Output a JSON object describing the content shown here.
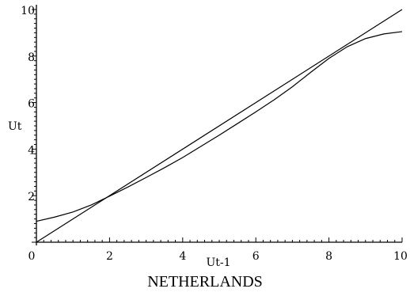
{
  "chart_data": {
    "type": "line",
    "title": "NETHERLANDS",
    "xlabel": "Ut-1",
    "ylabel": "Ut",
    "xlim": [
      0,
      10
    ],
    "ylim": [
      0,
      10
    ],
    "x_ticks": [
      "0",
      "2",
      "4",
      "6",
      "8",
      "10"
    ],
    "y_ticks": [
      "2",
      "4",
      "6",
      "8",
      "10"
    ],
    "grid": false,
    "legend": "none",
    "series": [
      {
        "x": [
          0,
          10
        ],
        "y": [
          0,
          10
        ]
      },
      {
        "x": [
          0,
          0.5,
          1,
          1.5,
          2,
          2.5,
          3,
          3.5,
          4,
          4.5,
          5,
          5.5,
          6,
          6.5,
          7,
          7.5,
          8,
          8.5,
          9,
          9.5,
          10
        ],
        "y": [
          0.9,
          1.08,
          1.3,
          1.6,
          1.98,
          2.37,
          2.78,
          3.2,
          3.64,
          4.12,
          4.6,
          5.1,
          5.6,
          6.12,
          6.68,
          7.3,
          7.9,
          8.4,
          8.75,
          8.95,
          9.05
        ]
      }
    ]
  }
}
